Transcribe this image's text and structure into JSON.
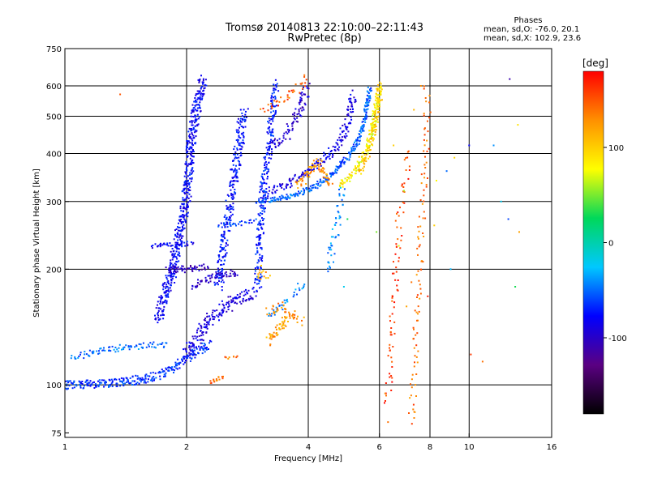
{
  "chart_data": {
    "type": "scatter",
    "title": "Tromsø 20140813 22:10:00–22:11:43",
    "subtitle": "RwPretec (8p)",
    "xlabel": "Frequency [MHz]",
    "ylabel": "Stationary phase Virtual Height [km]",
    "xscale": "log",
    "yscale": "log",
    "xlim": [
      1,
      16
    ],
    "ylim": [
      73,
      750
    ],
    "xticks": [
      1,
      2,
      4,
      6,
      8,
      10,
      16
    ],
    "xtick_labels": [
      "1",
      "2",
      "4",
      "6",
      "8",
      "10",
      "16"
    ],
    "yticks": [
      75,
      100,
      200,
      300,
      400,
      500,
      600,
      750
    ],
    "ytick_labels": [
      "75",
      "100",
      "200",
      "300",
      "400",
      "500",
      "600",
      "750"
    ],
    "grid": true,
    "colorbar": {
      "label": "[deg]",
      "range": [
        -180,
        180
      ],
      "tick_values": [
        100,
        0,
        -100
      ],
      "tick_labels": [
        "100",
        "0",
        "-100"
      ],
      "colormap": [
        "#000000",
        "#5a0082",
        "#0000ff",
        "#00c8ff",
        "#00d85a",
        "#ffff00",
        "#ff9000",
        "#ff0000"
      ]
    },
    "legend": {
      "title": "Phases",
      "lines": [
        "mean, sd,O: -76.0, 20.1",
        "mean, sd,X: 102.9, 23.6"
      ]
    },
    "series": [
      {
        "name": "O",
        "phase_mean": -76.0,
        "phase_sd": 20.1,
        "traces": [
          {
            "points": [
              [
                1.0,
                100
              ],
              [
                1.1,
                100
              ],
              [
                1.2,
                101
              ],
              [
                1.3,
                101
              ],
              [
                1.4,
                102
              ],
              [
                1.5,
                103
              ],
              [
                1.6,
                104
              ],
              [
                1.7,
                106
              ],
              [
                1.8,
                109
              ],
              [
                1.9,
                113
              ],
              [
                2.0,
                117
              ],
              [
                2.1,
                121
              ],
              [
                2.2,
                125
              ],
              [
                2.3,
                128
              ]
            ],
            "phase": -65,
            "jitter": 0.02,
            "copies": 6
          },
          {
            "points": [
              [
                2.0,
                120
              ],
              [
                2.2,
                140
              ],
              [
                2.4,
                155
              ],
              [
                2.6,
                165
              ],
              [
                2.8,
                170
              ],
              [
                3.0,
                175
              ]
            ],
            "phase": -90,
            "jitter": 0.03,
            "copies": 6
          },
          {
            "points": [
              [
                1.05,
                118
              ],
              [
                1.2,
                122
              ],
              [
                1.4,
                125
              ],
              [
                1.6,
                127
              ],
              [
                1.8,
                126
              ]
            ],
            "phase": -50,
            "jitter": 0.015,
            "copies": 3
          },
          {
            "points": [
              [
                1.65,
                230
              ],
              [
                1.8,
                231
              ],
              [
                1.95,
                232
              ],
              [
                2.1,
                234
              ]
            ],
            "phase": -82,
            "jitter": 0.01,
            "copies": 3
          },
          {
            "points": [
              [
                1.7,
                150
              ],
              [
                1.85,
                200
              ],
              [
                2.0,
                310
              ],
              [
                2.05,
                420
              ],
              [
                2.1,
                500
              ],
              [
                2.15,
                560
              ],
              [
                2.2,
                630
              ]
            ],
            "phase": -80,
            "jitter": 0.025,
            "copies": 7
          },
          {
            "points": [
              [
                2.4,
                180
              ],
              [
                2.5,
                250
              ],
              [
                2.6,
                330
              ],
              [
                2.7,
                430
              ],
              [
                2.75,
                500
              ],
              [
                2.8,
                520
              ]
            ],
            "phase": -75,
            "jitter": 0.025,
            "copies": 5
          },
          {
            "points": [
              [
                2.1,
                180
              ],
              [
                2.3,
                190
              ],
              [
                2.5,
                195
              ],
              [
                2.7,
                196
              ]
            ],
            "phase": -100,
            "jitter": 0.02,
            "copies": 4
          },
          {
            "points": [
              [
                1.8,
                200
              ],
              [
                2.0,
                200
              ],
              [
                2.2,
                202
              ],
              [
                2.3,
                203
              ]
            ],
            "phase": -105,
            "jitter": 0.015,
            "copies": 4
          },
          {
            "points": [
              [
                3.0,
                300
              ],
              [
                3.4,
                305
              ],
              [
                3.8,
                315
              ],
              [
                4.2,
                330
              ],
              [
                4.6,
                355
              ],
              [
                5.0,
                390
              ],
              [
                5.3,
                430
              ],
              [
                5.5,
                480
              ],
              [
                5.6,
                540
              ],
              [
                5.7,
                600
              ]
            ],
            "phase": -55,
            "jitter": 0.012,
            "copies": 5
          },
          {
            "points": [
              [
                3.1,
                310
              ],
              [
                3.5,
                330
              ],
              [
                4.0,
                360
              ],
              [
                4.4,
                390
              ],
              [
                4.8,
                430
              ],
              [
                5.0,
                480
              ],
              [
                5.1,
                530
              ],
              [
                5.2,
                580
              ]
            ],
            "phase": -88,
            "jitter": 0.02,
            "copies": 4
          },
          {
            "points": [
              [
                3.0,
                180
              ],
              [
                3.05,
                260
              ],
              [
                3.1,
                330
              ],
              [
                3.2,
                420
              ],
              [
                3.25,
                500
              ],
              [
                3.3,
                560
              ],
              [
                3.35,
                620
              ]
            ],
            "phase": -70,
            "jitter": 0.02,
            "copies": 4
          },
          {
            "points": [
              [
                3.2,
                420
              ],
              [
                3.5,
                440
              ],
              [
                3.7,
                480
              ],
              [
                3.8,
                520
              ],
              [
                3.9,
                560
              ],
              [
                4.0,
                600
              ]
            ],
            "phase": -95,
            "jitter": 0.025,
            "copies": 4
          },
          {
            "points": [
              [
                2.4,
                260
              ],
              [
                2.6,
                262
              ],
              [
                2.8,
                264
              ],
              [
                3.0,
                268
              ]
            ],
            "phase": -60,
            "jitter": 0.01,
            "copies": 2
          },
          {
            "points": [
              [
                3.2,
                150
              ],
              [
                3.4,
                160
              ],
              [
                3.6,
                170
              ],
              [
                3.8,
                180
              ],
              [
                4.0,
                175
              ]
            ],
            "phase": -45,
            "jitter": 0.02,
            "copies": 2
          },
          {
            "points": [
              [
                4.5,
                200
              ],
              [
                4.6,
                230
              ],
              [
                4.7,
                260
              ],
              [
                4.8,
                300
              ],
              [
                4.9,
                330
              ]
            ],
            "phase": -40,
            "jitter": 0.02,
            "copies": 2
          }
        ]
      },
      {
        "name": "X",
        "phase_mean": 102.9,
        "phase_sd": 23.6,
        "traces": [
          {
            "points": [
              [
                2.3,
                102
              ],
              [
                2.4,
                104
              ],
              [
                2.5,
                106
              ]
            ],
            "phase": 145,
            "jitter": 0.008,
            "copies": 3
          },
          {
            "points": [
              [
                2.5,
                117
              ],
              [
                2.6,
                118
              ],
              [
                2.7,
                119
              ]
            ],
            "phase": 140,
            "jitter": 0.008,
            "copies": 2
          },
          {
            "points": [
              [
                3.2,
                130
              ],
              [
                3.3,
                135
              ],
              [
                3.4,
                140
              ],
              [
                3.5,
                147
              ],
              [
                3.6,
                152
              ]
            ],
            "phase": 120,
            "jitter": 0.02,
            "copies": 5
          },
          {
            "points": [
              [
                3.2,
                155
              ],
              [
                3.4,
                160
              ],
              [
                3.7,
                150
              ],
              [
                3.9,
                145
              ]
            ],
            "phase": 130,
            "jitter": 0.02,
            "copies": 3
          },
          {
            "points": [
              [
                3.8,
                330
              ],
              [
                4.0,
                360
              ],
              [
                4.2,
                380
              ],
              [
                4.4,
                350
              ],
              [
                4.6,
                330
              ]
            ],
            "phase": 125,
            "jitter": 0.02,
            "copies": 4
          },
          {
            "points": [
              [
                4.8,
                330
              ],
              [
                5.0,
                345
              ],
              [
                5.3,
                370
              ],
              [
                5.5,
                400
              ],
              [
                5.7,
                440
              ],
              [
                5.8,
                480
              ],
              [
                5.9,
                530
              ],
              [
                6.0,
                600
              ]
            ],
            "phase": 80,
            "jitter": 0.015,
            "copies": 5
          },
          {
            "points": [
              [
                5.4,
                360
              ],
              [
                5.6,
                400
              ],
              [
                5.8,
                450
              ],
              [
                5.9,
                500
              ],
              [
                6.0,
                560
              ],
              [
                6.05,
                620
              ]
            ],
            "phase": 100,
            "jitter": 0.015,
            "copies": 3
          },
          {
            "points": [
              [
                3.1,
                520
              ],
              [
                3.3,
                540
              ],
              [
                3.5,
                560
              ],
              [
                3.7,
                580
              ],
              [
                4.0,
                640
              ]
            ],
            "phase": 150,
            "jitter": 0.02,
            "copies": 2
          },
          {
            "points": [
              [
                3.0,
                190
              ],
              [
                3.1,
                200
              ],
              [
                3.2,
                185
              ]
            ],
            "phase": 115,
            "jitter": 0.02,
            "copies": 2
          },
          {
            "points": [
              [
                7.2,
                80
              ],
              [
                7.3,
                110
              ],
              [
                7.4,
                150
              ],
              [
                7.5,
                190
              ],
              [
                7.6,
                250
              ],
              [
                7.8,
                390
              ],
              [
                7.9,
                600
              ]
            ],
            "phase": 140,
            "jitter": 0.02,
            "copies": 1
          },
          {
            "points": [
              [
                6.3,
                90
              ],
              [
                6.4,
                130
              ],
              [
                6.5,
                160
              ],
              [
                6.6,
                200
              ],
              [
                6.7,
                260
              ],
              [
                6.8,
                300
              ],
              [
                7.0,
                350
              ],
              [
                7.1,
                420
              ]
            ],
            "phase": 160,
            "jitter": 0.02,
            "copies": 1
          }
        ]
      }
    ],
    "isolated_points": [
      [
        1.37,
        570,
        150
      ],
      [
        6.3,
        80,
        140
      ],
      [
        6.2,
        95,
        130
      ],
      [
        6.4,
        135,
        160
      ],
      [
        7.0,
        160,
        120
      ],
      [
        7.2,
        185,
        140
      ],
      [
        7.9,
        170,
        170
      ],
      [
        8.2,
        260,
        100
      ],
      [
        8.3,
        340,
        80
      ],
      [
        9.0,
        200,
        -30
      ],
      [
        9.2,
        390,
        95
      ],
      [
        10.0,
        420,
        -80
      ],
      [
        10.1,
        120,
        160
      ],
      [
        10.8,
        115,
        140
      ],
      [
        12.0,
        300,
        -20
      ],
      [
        13.0,
        180,
        30
      ],
      [
        13.3,
        250,
        120
      ],
      [
        13.2,
        475,
        90
      ],
      [
        12.6,
        625,
        -110
      ],
      [
        12.5,
        270,
        -60
      ],
      [
        11.5,
        420,
        -40
      ],
      [
        7.3,
        520,
        110
      ],
      [
        7.6,
        600,
        130
      ],
      [
        8.8,
        360,
        -50
      ],
      [
        6.7,
        230,
        70
      ],
      [
        6.9,
        320,
        60
      ],
      [
        5.9,
        250,
        50
      ],
      [
        5.0,
        270,
        30
      ],
      [
        4.9,
        180,
        -20
      ],
      [
        6.5,
        420,
        100
      ]
    ]
  }
}
